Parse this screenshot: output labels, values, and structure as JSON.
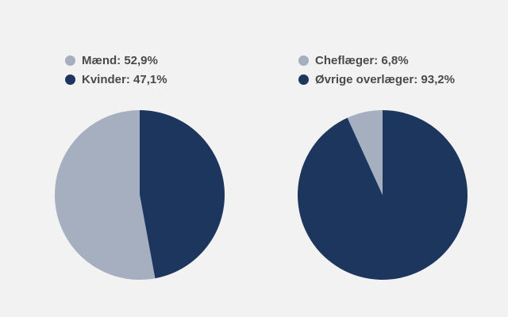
{
  "chart_data": [
    {
      "type": "pie",
      "series": [
        {
          "label": "Mænd: 52,9%",
          "value": 52.9,
          "color": "#a5afc0"
        },
        {
          "label": "Kvinder: 47,1%",
          "value": 47.1,
          "color": "#1c365e"
        }
      ],
      "legend": "top-left"
    },
    {
      "type": "pie",
      "series": [
        {
          "label": "Cheflæger: 6,8%",
          "value": 6.8,
          "color": "#a5afc0"
        },
        {
          "label": "Øvrige overlæger: 93,2%",
          "value": 93.2,
          "color": "#1c365e"
        }
      ],
      "legend": "top-left"
    }
  ]
}
